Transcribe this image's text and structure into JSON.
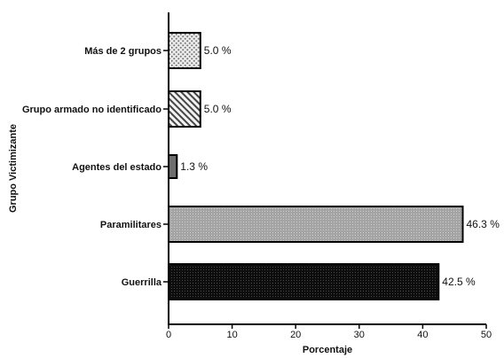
{
  "chart_data": {
    "type": "bar",
    "orientation": "horizontal",
    "categories": [
      "Más de 2 grupos",
      "Grupo armado no identificado",
      "Agentes del estado",
      "Paramilitares",
      "Guerrilla"
    ],
    "values": [
      5.0,
      5.0,
      1.3,
      46.3,
      42.5
    ],
    "value_labels": [
      "5.0 %",
      "5.0 %",
      "1.3 %",
      "46.3 %",
      "42.5 %"
    ],
    "xlabel": "Porcentaje",
    "ylabel": "Grupo Victimizante",
    "xlim": [
      0,
      50
    ],
    "xticks": [
      "0",
      "10",
      "20",
      "30",
      "40",
      "50"
    ],
    "grid": false,
    "legend": "none",
    "fill_styles": [
      "dots-light",
      "diagonal-hatch",
      "solid-gray",
      "fine-dots-gray",
      "fine-dots-black"
    ]
  }
}
